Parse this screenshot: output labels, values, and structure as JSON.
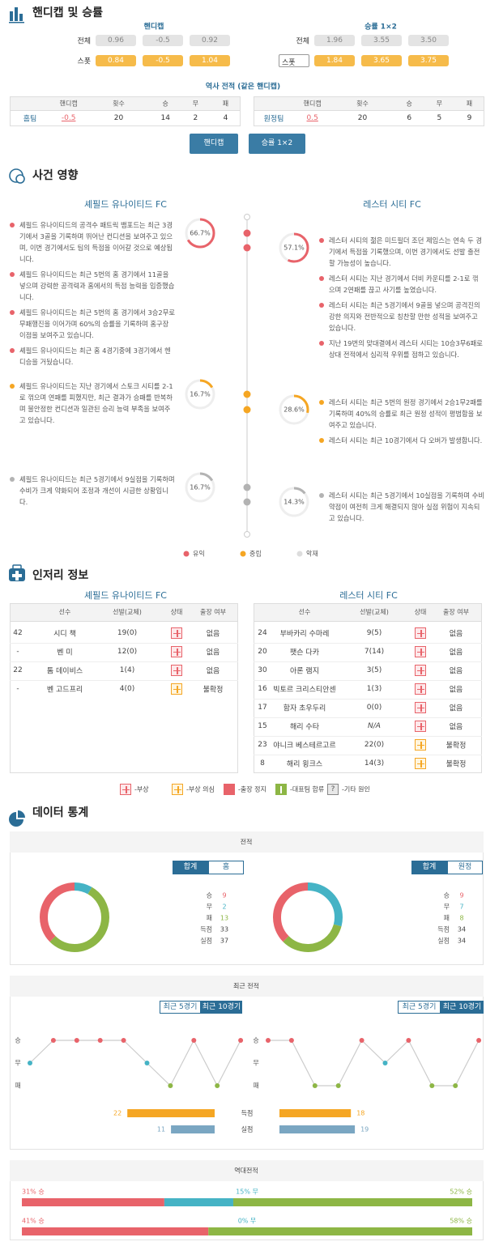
{
  "handicap": {
    "title": "핸디캡 및 승률",
    "handicap_header": "핸디캡",
    "winrate_header": "승률 1×2",
    "rows": [
      {
        "label": "전체",
        "handicap": [
          "0.96",
          "-0.5",
          "0.92"
        ],
        "winrate": [
          "1.96",
          "3.55",
          "3.50"
        ]
      },
      {
        "label": "스폿",
        "select": "스폿",
        "handicap": [
          "0.84",
          "-0.5",
          "1.04"
        ],
        "winrate": [
          "1.84",
          "3.65",
          "3.75"
        ]
      }
    ],
    "history_title": "역사 전적 (같은 핸디캡)",
    "columns": [
      "핸디캡",
      "횟수",
      "승",
      "무",
      "패"
    ],
    "home": [
      "홈팀",
      "-0.5",
      "20",
      "14",
      "2",
      "4"
    ],
    "away": [
      "원정팀",
      "0.5",
      "20",
      "6",
      "5",
      "9"
    ],
    "buttons": [
      "핸디캡",
      "승률 1×2"
    ]
  },
  "events": {
    "title": "사건 영향",
    "home_team": "셰필드 유나이티드 FC",
    "away_team": "레스터 시티 FC",
    "groups": [
      {
        "home_pct": "66.7%",
        "away_pct": "57.1%",
        "home_items": [
          "셰필드 유나이티드의 공격수 패트릭 뱀포드는 최근 3경기에서 3골을 기록하며 뛰어난 컨디션을 보여주고 있으며, 이번 경기에서도 팀의 득점을 이어갈 것으로 예상됩니다.",
          "셰필드 유나이티드는 최근 5번의 홈 경기에서 11골을 넣으며 강력한 공격력과 홈에서의 득점 능력을 입증했습니다.",
          "셰필드 유나이티드는 최근 5번의 홈 경기에서 3승2무로 무패행진을 이어가며 60%의 승률을 기록하며 홈구장 이점을 보여주고 있습니다.",
          "셰필드 유나이티드는 최근 홈 4경기중에 3경기에서 헨디승을 거뒀습니다."
        ],
        "away_items": [
          "레스터 시티의 젊은 미드필더 조던 제임스는 연속 두 경기에서 득점을 기록했으며, 이번 경기에서도 선발 출전할 가능성이 높습니다.",
          "레스터 시티는 지난 경기에서 더비 카운티를 2-1로 꺾으며 2연패를 끊고 사기를 높였습니다.",
          "레스터 시티는 최근 5경기에서 9골을 넣으며 공격진의 강한 의지와 전반적으로 칭찬할 만한 성적을 보여주고 있습니다.",
          "지난 19번의 맞대결에서 레스터 시티는 10승3무6패로 상대 전적에서 심리적 우위를 점하고 있습니다."
        ]
      },
      {
        "home_pct": "16.7%",
        "away_pct": "28.6%",
        "home_items": [
          "셰필드 유나이티드는 지난 경기에서 스토크 시티를 2-1로 꺾으며 연패를 피했지만, 최근 결과가 승패를 반복하며 불안정한 컨디션과 일관된 승리 능력 부족을 보여주고 있습니다."
        ],
        "away_items": [
          "레스터 시티는 최근 5번의 원정 경기에서 2승1무2패를 기록하며 40%의 승률로 최근 원정 성적이 평범함을 보여주고 있습니다.",
          "레스터 시티는 최근 10경기에서 다 오버가 발생합니다."
        ]
      },
      {
        "home_pct": "16.7%",
        "away_pct": "14.3%",
        "home_items": [
          "셰필드 유나이티드는 최근 5경기에서 9실점을 기록하며 수비가 크게 약화되어 조정과 개선이 시급한 상황입니다."
        ],
        "away_items": [
          "레스터 시티는 최근 5경기에서 10실점을 기록하며 수비 약점이 여전히 크게 해결되지 않아 실점 위험이 지속되고 있습니다."
        ]
      }
    ],
    "legend": [
      "유익",
      "중립",
      "악재"
    ]
  },
  "injury": {
    "title": "인저리 정보",
    "columns": [
      "선수",
      "선발(교체)",
      "상태",
      "출장 여부"
    ],
    "home": {
      "team": "셰필드 유나이티드 FC",
      "rows": [
        {
          "no": "42",
          "name": "시디 책",
          "apps": "19(0)",
          "status": "injured",
          "available": "없음"
        },
        {
          "no": "-",
          "name": "벤 미",
          "apps": "12(0)",
          "status": "injured",
          "available": "없음"
        },
        {
          "no": "22",
          "name": "톰 데이비스",
          "apps": "1(4)",
          "status": "injured",
          "available": "없음"
        },
        {
          "no": "-",
          "name": "벤 고드프리",
          "apps": "4(0)",
          "status": "doubtful",
          "available": "불확정"
        }
      ]
    },
    "away": {
      "team": "레스터 시티 FC",
      "rows": [
        {
          "no": "24",
          "name": "부바카리 수마레",
          "apps": "9(5)",
          "status": "injured",
          "available": "없음"
        },
        {
          "no": "20",
          "name": "팻슨 다카",
          "apps": "7(14)",
          "status": "injured",
          "available": "없음"
        },
        {
          "no": "30",
          "name": "아론 램지",
          "apps": "3(5)",
          "status": "injured",
          "available": "없음"
        },
        {
          "no": "16",
          "name": "빅토르 크리스티안센",
          "apps": "1(3)",
          "status": "injured",
          "available": "없음"
        },
        {
          "no": "17",
          "name": "함자 초우두리",
          "apps": "0(0)",
          "status": "injured",
          "available": "없음"
        },
        {
          "no": "15",
          "name": "해리 수타",
          "apps": "N/A",
          "status": "injured",
          "available": "없음"
        },
        {
          "no": "23",
          "name": "야니크 베스테르고르",
          "apps": "22(0)",
          "status": "doubtful",
          "available": "불확정"
        },
        {
          "no": "8",
          "name": "해리 윙크스",
          "apps": "14(3)",
          "status": "doubtful",
          "available": "불확정"
        }
      ]
    },
    "legend": [
      {
        "kind": "injured",
        "label": "-부상"
      },
      {
        "kind": "doubtful",
        "label": "-부상 의심"
      },
      {
        "kind": "suspended",
        "label": "-출장 정지"
      },
      {
        "kind": "national",
        "label": "-대표팀 합류"
      },
      {
        "kind": "other",
        "label": "-기타 원인",
        "icon_text": "?"
      }
    ]
  },
  "stats": {
    "title": "데이터 통계",
    "record": {
      "title": "전적",
      "labels": [
        "승",
        "무",
        "패",
        "득점",
        "실점"
      ],
      "home": {
        "tabs": [
          "합계",
          "홈"
        ],
        "values": [
          9,
          2,
          13,
          33,
          37
        ]
      },
      "away": {
        "tabs": [
          "합계",
          "원정"
        ],
        "values": [
          9,
          7,
          8,
          34,
          34
        ]
      }
    },
    "recent": {
      "title": "최근 전적",
      "tabs": [
        "최근 5경기",
        "최근 10경기"
      ],
      "levels": [
        "승",
        "무",
        "패"
      ],
      "home": [
        "무",
        "승",
        "승",
        "승",
        "승",
        "무",
        "패",
        "승",
        "패",
        "승"
      ],
      "away": [
        "승",
        "승",
        "패",
        "패",
        "승",
        "무",
        "승",
        "패",
        "패",
        "승"
      ],
      "bar_labels": [
        "득점",
        "실점"
      ],
      "home_bars": [
        22,
        11
      ],
      "away_bars": [
        18,
        19
      ]
    },
    "h2h": {
      "title": "역대전적",
      "rows": [
        [
          "31% 승",
          "15% 무",
          "52% 승"
        ],
        [
          "41% 승",
          "0% 무",
          "58% 승"
        ]
      ]
    }
  }
}
